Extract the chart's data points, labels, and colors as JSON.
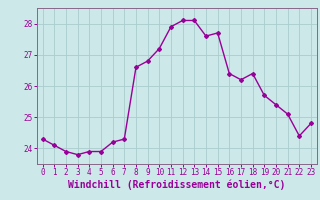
{
  "x": [
    0,
    1,
    2,
    3,
    4,
    5,
    6,
    7,
    8,
    9,
    10,
    11,
    12,
    13,
    14,
    15,
    16,
    17,
    18,
    19,
    20,
    21,
    22,
    23
  ],
  "y": [
    24.3,
    24.1,
    23.9,
    23.8,
    23.9,
    23.9,
    24.2,
    24.3,
    26.6,
    26.8,
    27.2,
    27.9,
    28.1,
    28.1,
    27.6,
    27.7,
    26.4,
    26.2,
    26.4,
    25.7,
    25.4,
    25.1,
    24.4,
    24.8
  ],
  "line_color": "#990099",
  "marker": "D",
  "marker_size": 2.0,
  "linewidth": 1.0,
  "xlabel": "Windchill (Refroidissement éolien,°C)",
  "xlabel_fontsize": 7,
  "ylim": [
    23.5,
    28.5
  ],
  "xlim": [
    -0.5,
    23.5
  ],
  "yticks": [
    24,
    25,
    26,
    27,
    28
  ],
  "xtick_labels": [
    "0",
    "1",
    "2",
    "3",
    "4",
    "5",
    "6",
    "7",
    "8",
    "9",
    "10",
    "11",
    "12",
    "13",
    "14",
    "15",
    "16",
    "17",
    "18",
    "19",
    "20",
    "21",
    "22",
    "23"
  ],
  "grid_color": "#aacccc",
  "background_color": "#cce8e8",
  "tick_fontsize": 5.5,
  "spine_color": "#886688"
}
